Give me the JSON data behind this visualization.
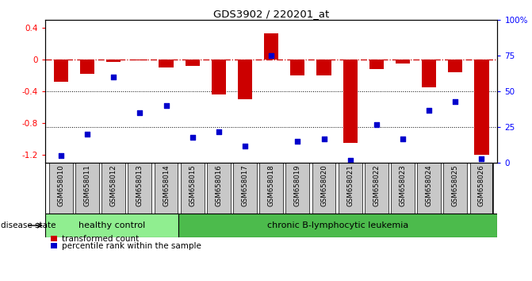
{
  "title": "GDS3902 / 220201_at",
  "samples": [
    "GSM658010",
    "GSM658011",
    "GSM658012",
    "GSM658013",
    "GSM658014",
    "GSM658015",
    "GSM658016",
    "GSM658017",
    "GSM658018",
    "GSM658019",
    "GSM658020",
    "GSM658021",
    "GSM658022",
    "GSM658023",
    "GSM658024",
    "GSM658025",
    "GSM658026"
  ],
  "bar_values": [
    -0.28,
    -0.18,
    -0.03,
    -0.01,
    -0.1,
    -0.08,
    -0.44,
    -0.5,
    0.33,
    -0.2,
    -0.2,
    -1.05,
    -0.12,
    -0.05,
    -0.35,
    -0.16,
    -1.2
  ],
  "dot_values": [
    5,
    20,
    60,
    35,
    40,
    18,
    22,
    12,
    75,
    15,
    17,
    2,
    27,
    17,
    37,
    43,
    3
  ],
  "healthy_count": 5,
  "ylim_left": [
    -1.3,
    0.5
  ],
  "ylim_right": [
    0,
    100
  ],
  "bar_color": "#cc0000",
  "dot_color": "#0000cc",
  "hline_color": "#cc0000",
  "dotgrid_color": "#000000",
  "healthy_label": "healthy control",
  "disease_label": "chronic B-lymphocytic leukemia",
  "disease_state_label": "disease state",
  "legend_bar_label": "transformed count",
  "legend_dot_label": "percentile rank within the sample",
  "healthy_bg": "#90ee90",
  "disease_bg": "#4cbb4c",
  "label_area_bg": "#c8c8c8"
}
